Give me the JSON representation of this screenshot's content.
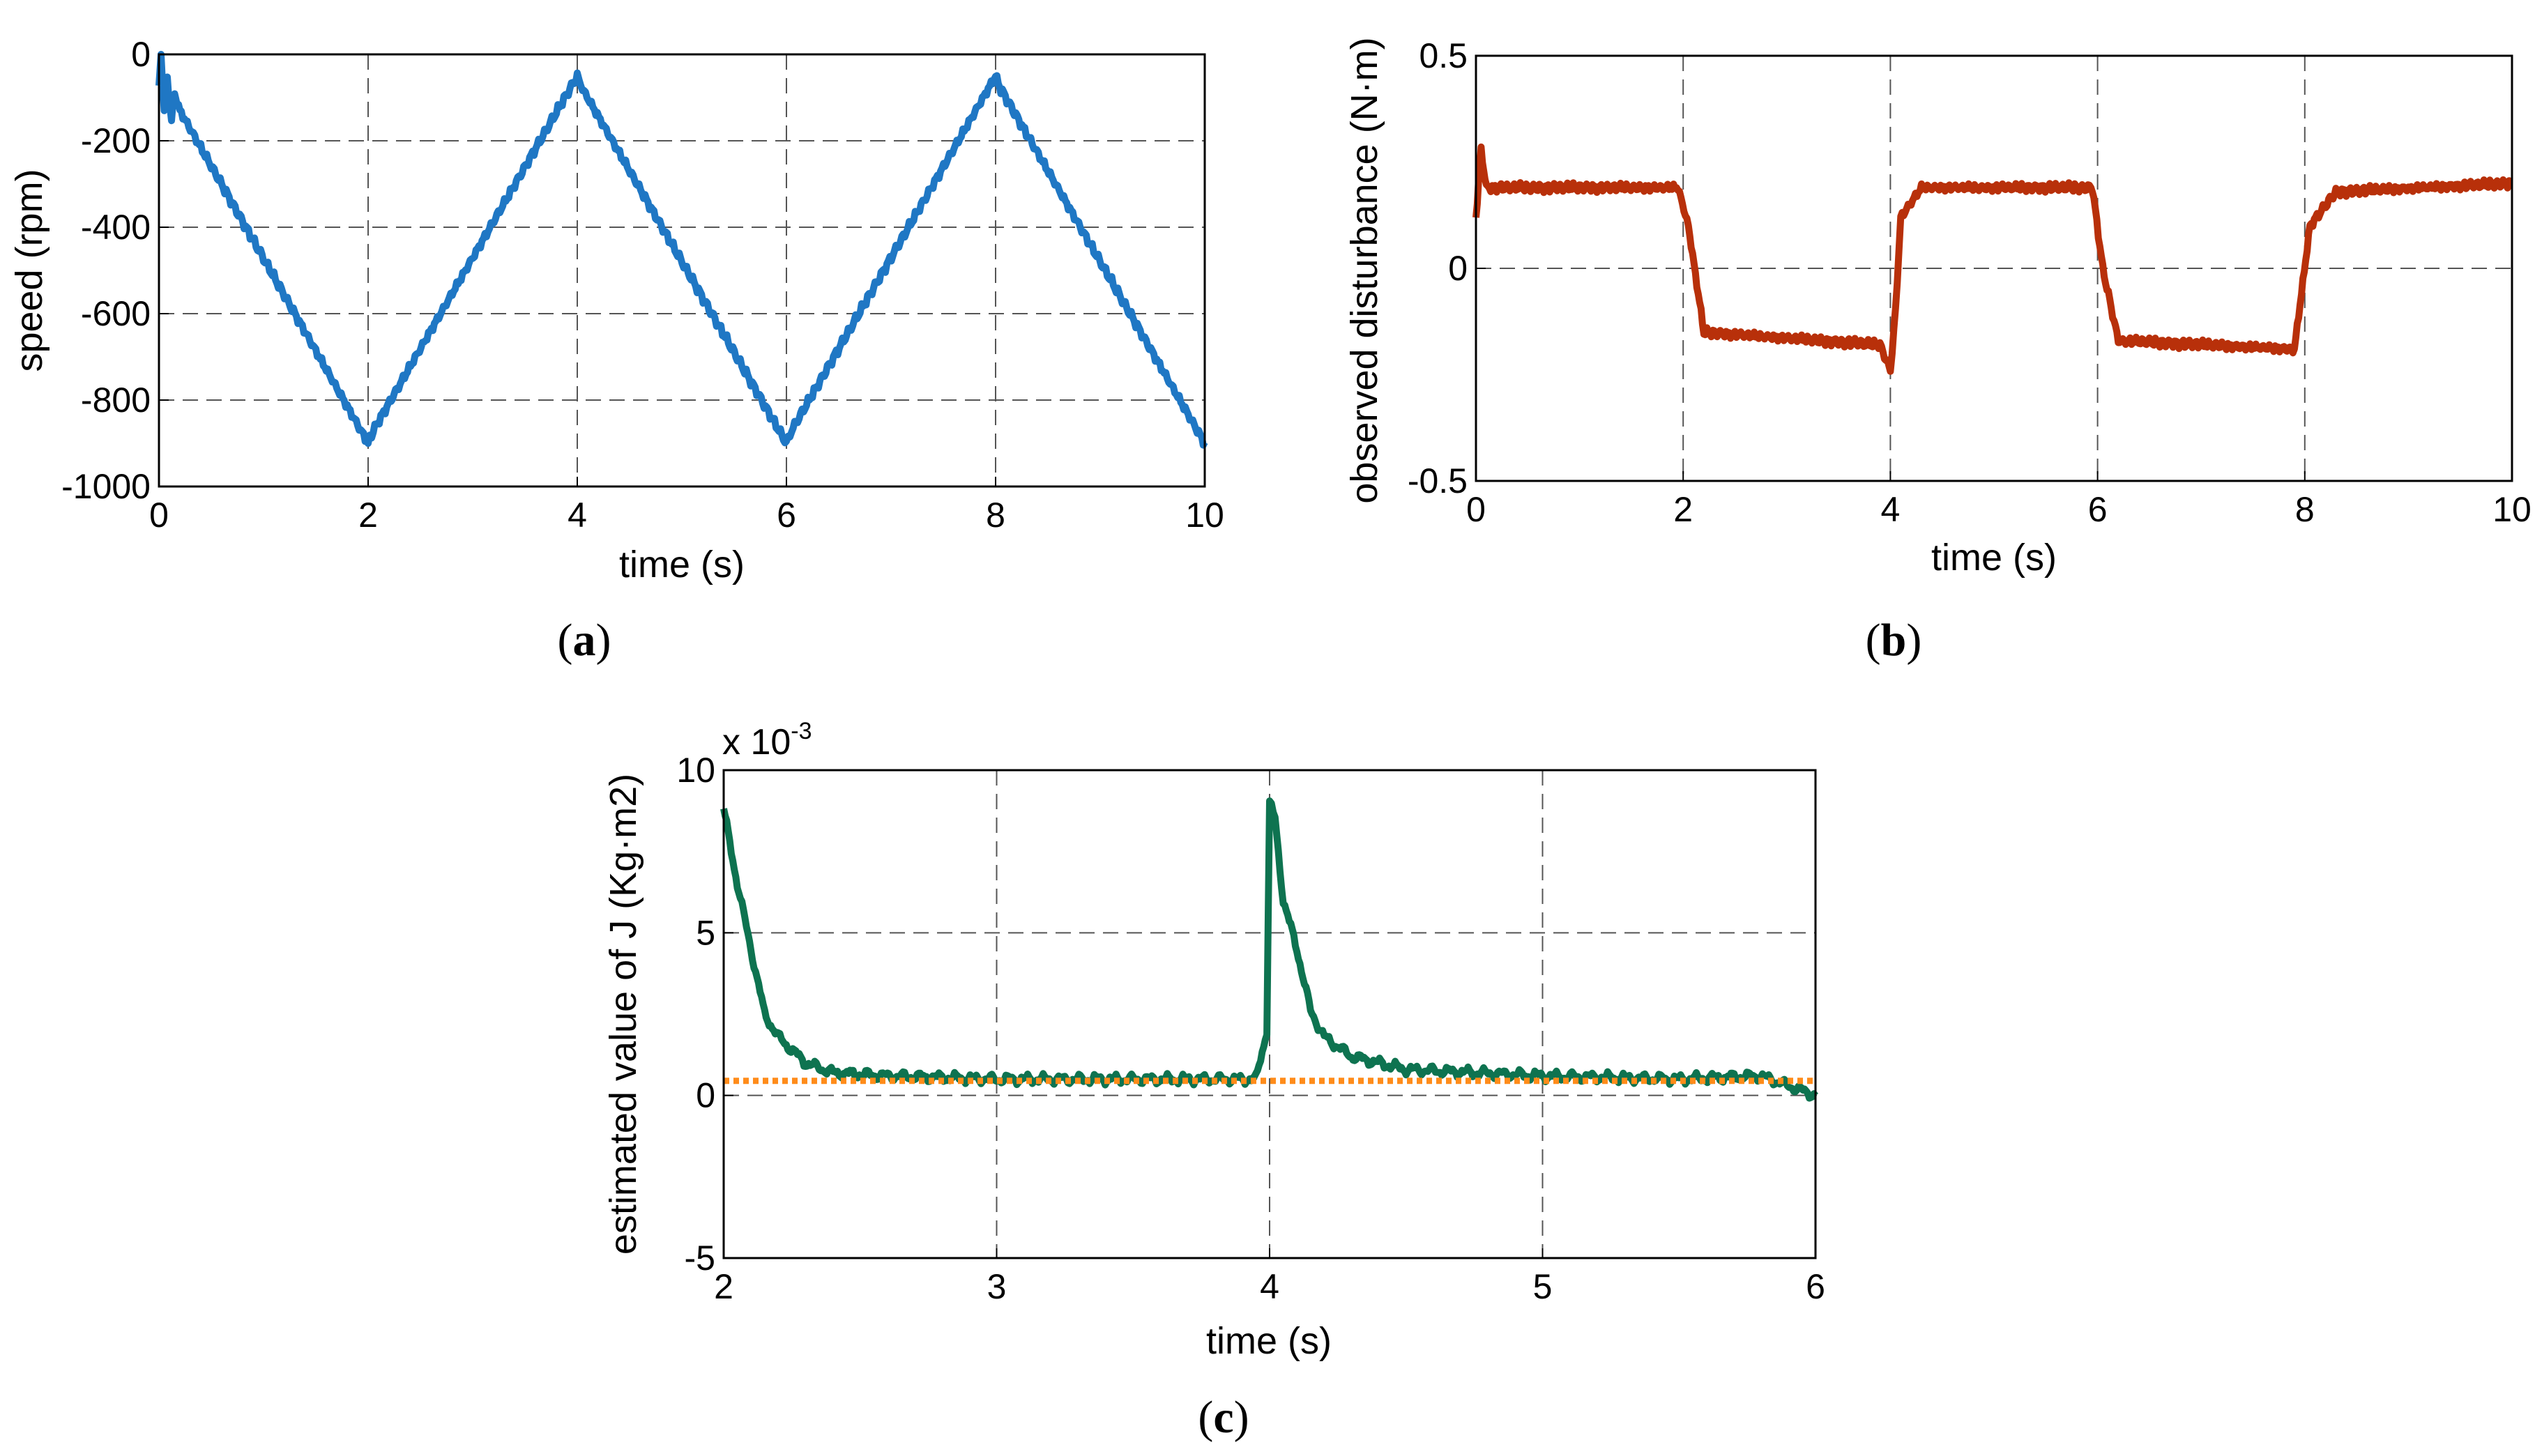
{
  "chart_data": [
    {
      "id": "a",
      "type": "line",
      "panel_label": "a",
      "title": "",
      "xlabel": "time (s)",
      "ylabel": "speed (rpm)",
      "xlim": [
        0,
        10
      ],
      "ylim": [
        -1000,
        0
      ],
      "xticks": [
        "0",
        "2",
        "4",
        "6",
        "8",
        "10"
      ],
      "yticks": [
        "0",
        "-200",
        "-400",
        "-600",
        "-800",
        "-1000"
      ],
      "grid": true,
      "series": [
        {
          "name": "speed",
          "color": "#1f77c4",
          "x": [
            0,
            0.02,
            0.05,
            0.08,
            0.12,
            0.15,
            0.2,
            2.0,
            2.05,
            4.0,
            4.05,
            6.0,
            6.05,
            8.0,
            8.05,
            10.0
          ],
          "y": [
            -80,
            0,
            -130,
            -60,
            -150,
            -90,
            -130,
            -900,
            -870,
            -50,
            -80,
            -900,
            -870,
            -50,
            -80,
            -900
          ]
        }
      ]
    },
    {
      "id": "b",
      "type": "line",
      "panel_label": "b",
      "title": "",
      "xlabel": "time (s)",
      "ylabel": "observed disturbance (N·m)",
      "xlim": [
        0,
        10
      ],
      "ylim": [
        -0.5,
        0.5
      ],
      "xticks": [
        "0",
        "2",
        "4",
        "6",
        "8",
        "10"
      ],
      "yticks": [
        "0.5",
        "0",
        "-0.5"
      ],
      "grid": true,
      "series": [
        {
          "name": "disturbance",
          "color": "#b8300a",
          "x": [
            0,
            0.05,
            0.1,
            1.95,
            2.05,
            2.2,
            3.9,
            4.0,
            4.05,
            4.1,
            4.3,
            5.95,
            6.05,
            6.2,
            7.9,
            8.05,
            8.3,
            10.0
          ],
          "y": [
            0.12,
            0.28,
            0.19,
            0.19,
            0.1,
            -0.15,
            -0.18,
            -0.24,
            -0.1,
            0.12,
            0.19,
            0.19,
            0.0,
            -0.17,
            -0.19,
            0.1,
            0.18,
            0.2
          ]
        }
      ]
    },
    {
      "id": "c",
      "type": "line",
      "panel_label": "c",
      "title": "",
      "xlabel": "time (s)",
      "ylabel": "estimated value of J (Kg·m2)",
      "scale_label": "x 10",
      "scale_exponent": "-3",
      "xlim": [
        2,
        6
      ],
      "ylim": [
        -5,
        10
      ],
      "xticks": [
        "2",
        "3",
        "4",
        "5",
        "6"
      ],
      "yticks": [
        "10",
        "5",
        "0",
        "-5"
      ],
      "grid": true,
      "series": [
        {
          "name": "estimated J",
          "color": "#0e7350",
          "x": [
            2.0,
            2.05,
            2.1,
            2.15,
            2.2,
            2.3,
            2.4,
            2.6,
            3.0,
            3.5,
            3.95,
            3.99,
            4.0,
            4.02,
            4.05,
            4.1,
            4.15,
            4.2,
            4.3,
            4.5,
            5.0,
            5.5,
            5.8,
            6.0
          ],
          "y": [
            8.8,
            6.5,
            4.5,
            2.5,
            1.8,
            1.0,
            0.7,
            0.6,
            0.5,
            0.5,
            0.5,
            2.0,
            9.0,
            8.5,
            6.0,
            4.5,
            2.6,
            1.8,
            1.2,
            0.8,
            0.6,
            0.5,
            0.6,
            0.0
          ]
        },
        {
          "name": "reference J",
          "color": "#ff8c1a",
          "dashed": true,
          "x": [
            2,
            6
          ],
          "y": [
            0.45,
            0.45
          ]
        }
      ]
    }
  ]
}
